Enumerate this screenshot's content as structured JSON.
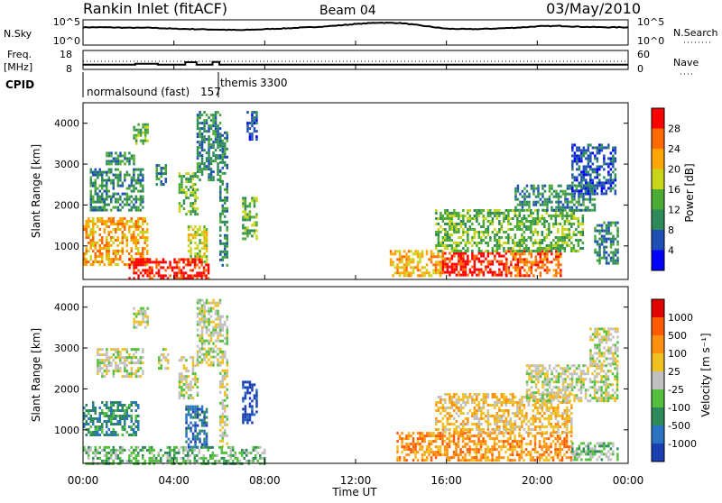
{
  "header": {
    "station": "Rankin Inlet (fitACF)",
    "beam": "Beam 04",
    "date": "03/May/2010"
  },
  "noise_panel": {
    "left_label": "N.Sky",
    "left_ticks": [
      "10^5",
      "10^0"
    ],
    "right_ticks": [
      "10^5",
      "10^0"
    ],
    "right_label": "N.Search"
  },
  "freq_panel": {
    "left_label_1": "Freq.",
    "left_label_2": "[MHz]",
    "left_ticks": [
      "18",
      "8"
    ],
    "right_ticks": [
      "60",
      "0"
    ],
    "right_label": "Nave"
  },
  "cpid": {
    "label": "CPID",
    "modes": [
      {
        "name": "normalsound (fast)",
        "id": "157"
      },
      {
        "name": "themis",
        "id": "3300"
      }
    ]
  },
  "time_axis": {
    "ticks": [
      "00:00",
      "04:00",
      "08:00",
      "12:00",
      "16:00",
      "20:00",
      "00:00"
    ],
    "label": "Time UT"
  },
  "power_panel": {
    "ylabel": "Slant Range [km]",
    "yticks": [
      "4000",
      "3000",
      "2000",
      "1000"
    ],
    "colorbar_label": "Power [dB]",
    "colorbar_ticks": [
      "28",
      "24",
      "20",
      "16",
      "12",
      "8",
      "4"
    ],
    "colors": [
      "#0000ff",
      "#1f4fb5",
      "#2e8a5a",
      "#4cab35",
      "#c8d51a",
      "#ffa500",
      "#ff6a00",
      "#ff0000"
    ]
  },
  "velocity_panel": {
    "ylabel": "Slant Range [km]",
    "yticks": [
      "4000",
      "3000",
      "2000",
      "1000"
    ],
    "colorbar_label": "Velocity [m s⁻¹]",
    "colorbar_ticks": [
      "1000",
      "500",
      "100",
      "25",
      "-25",
      "-100",
      "-500",
      "-1000"
    ],
    "colors": [
      "#1a3fb3",
      "#2a73c2",
      "#2e8a5a",
      "#55c040",
      "#c0c0c0",
      "#f0c020",
      "#ff9010",
      "#ff5a00",
      "#e00000"
    ]
  },
  "chart_data": [
    {
      "type": "line",
      "title": "Noise (N.Sky)",
      "x_range": [
        0,
        24
      ],
      "x_units": "hours UT",
      "y_scale": "log",
      "y_range": [
        "10^0",
        "10^5"
      ],
      "series": [
        {
          "values_log10": [
            3.6,
            3.6,
            3.5,
            3.5,
            3.3,
            3.2,
            3.1,
            3.0,
            3.2,
            3.4,
            3.6,
            3.9,
            4.3,
            4.6,
            4.5,
            3.9,
            3.3,
            3.2,
            3.3,
            3.5,
            3.8,
            3.9,
            3.7,
            3.6,
            3.6
          ]
        }
      ]
    },
    {
      "type": "line",
      "title": "Frequency [MHz]",
      "y_range": [
        8,
        18
      ],
      "x": [
        0,
        2.3,
        2.3,
        3.3,
        3.3,
        4.5,
        4.5,
        5.0,
        5.0,
        5.7,
        5.7,
        6.0,
        6.0,
        24
      ],
      "values": [
        10.2,
        10.2,
        10.8,
        10.8,
        10.2,
        10.2,
        11.7,
        11.7,
        10.2,
        10.2,
        11.8,
        11.8,
        10.2,
        10.2
      ]
    },
    {
      "type": "heatmap",
      "title": "Power [dB]",
      "x_range": [
        0,
        24
      ],
      "y_range": [
        180,
        4500
      ],
      "color_range": [
        0,
        32
      ],
      "regions": [
        {
          "t": [
            0.0,
            2.8
          ],
          "r": [
            550,
            1700
          ],
          "level": 5
        },
        {
          "t": [
            0.3,
            2.6
          ],
          "r": [
            1900,
            2900
          ],
          "level": 2
        },
        {
          "t": [
            1.0,
            2.2
          ],
          "r": [
            3000,
            3300
          ],
          "level": 2
        },
        {
          "t": [
            2.2,
            2.8
          ],
          "r": [
            3500,
            4000
          ],
          "level": 3
        },
        {
          "t": [
            3.2,
            3.6
          ],
          "r": [
            2500,
            3000
          ],
          "level": 2
        },
        {
          "t": [
            4.2,
            5.0
          ],
          "r": [
            1800,
            2800
          ],
          "level": 3
        },
        {
          "t": [
            4.6,
            5.4
          ],
          "r": [
            600,
            1500
          ],
          "level": 4
        },
        {
          "t": [
            5.0,
            6.0
          ],
          "r": [
            2600,
            4300
          ],
          "level": 2
        },
        {
          "t": [
            6.0,
            6.3
          ],
          "r": [
            500,
            3800
          ],
          "level": 2
        },
        {
          "t": [
            7.0,
            7.6
          ],
          "r": [
            1200,
            2200
          ],
          "level": 3
        },
        {
          "t": [
            7.2,
            7.6
          ],
          "r": [
            3600,
            4300
          ],
          "level": 1
        },
        {
          "t": [
            2.0,
            5.5
          ],
          "r": [
            200,
            700
          ],
          "level": 7
        },
        {
          "t": [
            13.5,
            15.8
          ],
          "r": [
            250,
            900
          ],
          "level": 5
        },
        {
          "t": [
            15.8,
            18.6
          ],
          "r": [
            300,
            850
          ],
          "level": 7
        },
        {
          "t": [
            18.6,
            21.0
          ],
          "r": [
            300,
            900
          ],
          "level": 6
        },
        {
          "t": [
            15.5,
            22.0
          ],
          "r": [
            900,
            1900
          ],
          "level": 3
        },
        {
          "t": [
            19.0,
            22.5
          ],
          "r": [
            1900,
            2500
          ],
          "level": 2
        },
        {
          "t": [
            21.5,
            23.4
          ],
          "r": [
            2300,
            3500
          ],
          "level": 1
        },
        {
          "t": [
            22.5,
            23.5
          ],
          "r": [
            600,
            1600
          ],
          "level": 2
        }
      ]
    },
    {
      "type": "heatmap",
      "title": "Velocity [m s-1]",
      "x_range": [
        0,
        24
      ],
      "y_range": [
        180,
        4500
      ],
      "color_range": [
        -1000,
        1000
      ],
      "regions": [
        {
          "t": [
            0.0,
            2.4
          ],
          "r": [
            900,
            1700
          ],
          "level": 2
        },
        {
          "t": [
            0.6,
            2.6
          ],
          "r": [
            2300,
            3000
          ],
          "level": 4
        },
        {
          "t": [
            2.2,
            2.8
          ],
          "r": [
            3500,
            4000
          ],
          "level": 4
        },
        {
          "t": [
            3.3,
            3.7
          ],
          "r": [
            2500,
            3000
          ],
          "level": 4
        },
        {
          "t": [
            4.2,
            5.0
          ],
          "r": [
            1800,
            2800
          ],
          "level": 4
        },
        {
          "t": [
            4.5,
            5.4
          ],
          "r": [
            600,
            1600
          ],
          "level": 1
        },
        {
          "t": [
            5.0,
            6.0
          ],
          "r": [
            2600,
            4200
          ],
          "level": 4
        },
        {
          "t": [
            6.0,
            6.3
          ],
          "r": [
            500,
            3800
          ],
          "level": 4
        },
        {
          "t": [
            7.0,
            7.6
          ],
          "r": [
            1200,
            2200
          ],
          "level": 0
        },
        {
          "t": [
            0.0,
            8.0
          ],
          "r": [
            200,
            600
          ],
          "level": 3
        },
        {
          "t": [
            13.8,
            21.5
          ],
          "r": [
            250,
            950
          ],
          "level": 6
        },
        {
          "t": [
            15.5,
            21.5
          ],
          "r": [
            950,
            1900
          ],
          "level": 5
        },
        {
          "t": [
            19.5,
            23.5
          ],
          "r": [
            1700,
            2600
          ],
          "level": 4
        },
        {
          "t": [
            22.3,
            23.5
          ],
          "r": [
            2600,
            3500
          ],
          "level": 4
        },
        {
          "t": [
            21.5,
            23.5
          ],
          "r": [
            250,
            700
          ],
          "level": 3
        }
      ]
    }
  ]
}
